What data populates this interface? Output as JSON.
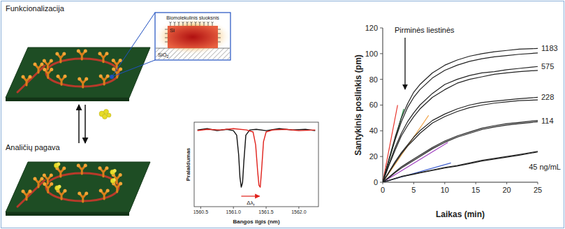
{
  "diagram": {
    "functionalization_label": "Funkcionalizacija",
    "capture_label": "Analičių pagava",
    "inset": {
      "layer_label": "Biomolekulinis sluoksnis",
      "core_label": "Si",
      "substrate_label": "SiO",
      "substrate_subscript": "2"
    }
  },
  "chart_data": [
    {
      "type": "line",
      "x_label": "Bangos ilgis (nm)",
      "y_label": "Pralaidumas",
      "xlim": [
        1560.4,
        1562.3
      ],
      "ylim": [
        -0.25,
        1.05
      ],
      "xticks": [
        1560.5,
        {
          "value": 1561,
          "label": "1561.0"
        },
        1561.5,
        {
          "value": 1562,
          "label": "1562.0"
        }
      ],
      "tick_labels": "x",
      "series": [
        {
          "color": "#111111",
          "x": [
            1560.45,
            1560.6,
            1560.75,
            1560.9,
            1561.0,
            1561.05,
            1561.08,
            1561.1,
            1561.12,
            1561.14,
            1561.16,
            1561.19,
            1561.25,
            1561.35,
            1561.5,
            1561.7,
            1561.9,
            1562.1,
            1562.25
          ],
          "values": [
            0.93,
            0.95,
            0.92,
            0.94,
            0.92,
            0.85,
            0.55,
            0.2,
            0.05,
            0.12,
            0.45,
            0.85,
            0.93,
            0.94,
            0.92,
            0.95,
            0.93,
            0.94,
            0.92
          ]
        },
        {
          "color": "#e0201a",
          "x": [
            1560.45,
            1560.6,
            1560.8,
            1561.0,
            1561.2,
            1561.3,
            1561.34,
            1561.37,
            1561.39,
            1561.41,
            1561.43,
            1561.46,
            1561.5,
            1561.6,
            1561.8,
            1562.0,
            1562.25
          ],
          "values": [
            0.92,
            0.94,
            0.93,
            0.95,
            0.93,
            0.9,
            0.7,
            0.3,
            0.08,
            0.05,
            0.3,
            0.75,
            0.9,
            0.93,
            0.94,
            0.92,
            0.93
          ]
        }
      ],
      "annotations": [
        {
          "text": "Δλ",
          "subscript": "r"
        }
      ]
    },
    {
      "type": "line",
      "x_label": "Laikas (min)",
      "y_label": "Santykinis poslinkis (pm)",
      "xlim": [
        0,
        25
      ],
      "ylim": [
        0,
        120
      ],
      "xticks": [
        0,
        5,
        10,
        15,
        20,
        25
      ],
      "yticks": [
        0,
        20,
        40,
        60,
        80,
        100,
        120
      ],
      "x": [
        0,
        1,
        2,
        3,
        4,
        5,
        6,
        8,
        10,
        12,
        14,
        16,
        18,
        20,
        22,
        25
      ],
      "series": [
        {
          "color": "#e8322a",
          "x": [
            0,
            2.4
          ],
          "values": [
            0,
            60
          ]
        },
        {
          "color": "#2a9a4a",
          "x": [
            0,
            3.4
          ],
          "values": [
            0,
            57
          ]
        },
        {
          "color": "#f0a040",
          "x": [
            0,
            7.4
          ],
          "values": [
            0,
            52
          ]
        },
        {
          "color": "#a040c0",
          "x": [
            0,
            10.5
          ],
          "values": [
            0,
            31
          ]
        },
        {
          "color": "#4060d0",
          "x": [
            0,
            11
          ],
          "values": [
            0,
            15
          ]
        },
        {
          "name": "1183",
          "color": "#222222",
          "values": [
            0,
            18,
            35,
            50,
            61,
            70,
            76,
            85,
            91,
            95,
            98,
            100,
            101.5,
            102.5,
            103.5,
            104
          ]
        },
        {
          "color": "#222222",
          "values": [
            0,
            17,
            33,
            47,
            58,
            66,
            72,
            81,
            87,
            91,
            94,
            96,
            97.5,
            98.5,
            99.5,
            100.5
          ]
        },
        {
          "name": "575",
          "color": "#222222",
          "values": [
            0,
            14,
            27,
            38,
            47,
            54,
            60,
            69,
            76,
            80,
            83,
            85,
            86,
            87.5,
            88.5,
            90
          ]
        },
        {
          "color": "#222222",
          "values": [
            0,
            13,
            25,
            36,
            44,
            51,
            57,
            66,
            72,
            77,
            80,
            82,
            84,
            85,
            86,
            87
          ]
        },
        {
          "name": "228",
          "color": "#222222",
          "values": [
            0,
            8,
            16,
            23,
            29,
            35,
            40,
            48,
            53,
            57,
            60,
            62,
            63,
            64,
            65,
            66
          ]
        },
        {
          "color": "#222222",
          "values": [
            0,
            7.5,
            15,
            22,
            28,
            33,
            38,
            46,
            51,
            55,
            58,
            60,
            61.5,
            62.5,
            63.5,
            64
          ]
        },
        {
          "name": "114",
          "color": "#222222",
          "values": [
            0,
            4,
            8,
            12,
            15,
            18,
            21,
            27,
            32,
            36,
            39,
            42,
            44,
            45.5,
            46.5,
            48
          ]
        },
        {
          "color": "#222222",
          "values": [
            0,
            3.5,
            7.5,
            11,
            14,
            17,
            20,
            26,
            31,
            35,
            38,
            41,
            43,
            44.5,
            45.5,
            47
          ]
        },
        {
          "name": "45 ng/mL",
          "color": "#222222",
          "values": [
            0,
            1.5,
            3,
            4.5,
            5.5,
            6.5,
            7.5,
            9.5,
            11.5,
            13,
            15,
            17,
            18.5,
            20,
            21.5,
            24
          ]
        },
        {
          "color": "#222222",
          "values": [
            0,
            1.3,
            2.8,
            4.2,
            5.2,
            6.2,
            7.2,
            9.2,
            11,
            12.6,
            14.5,
            16.5,
            18,
            19.5,
            21,
            23.5
          ]
        }
      ],
      "annotations": [
        {
          "text": "Pirminės liestinės"
        }
      ]
    }
  ]
}
